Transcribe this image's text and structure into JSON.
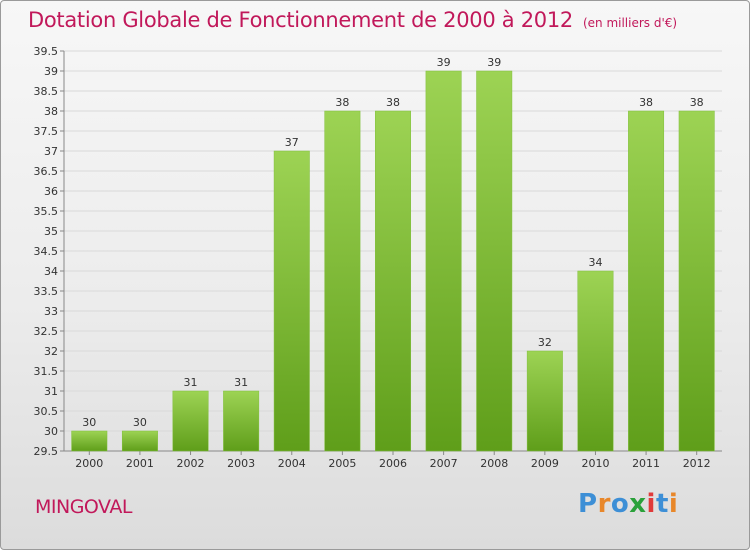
{
  "header": {
    "title": "Dotation Globale de Fonctionnement de 2000 à 2012",
    "unit": "(en milliers d'€)"
  },
  "footer": {
    "commune": "MINGOVAL",
    "logo_text": "Proxiti",
    "logo_colors": [
      "#3d8fd6",
      "#e8872a",
      "#3d8fd6",
      "#2aa13a",
      "#e03a3a",
      "#3d8fd6",
      "#e8872a"
    ]
  },
  "colors": {
    "title": "#c1185a",
    "bar_light": "#9dd354",
    "bar_dark": "#5f9e1a",
    "grid": "#d9d9d9",
    "axis_text": "#333333"
  },
  "chart_data": {
    "type": "bar",
    "title": "Dotation Globale de Fonctionnement de 2000 à 2012",
    "subtitle": "(en milliers d'€)",
    "xlabel": "",
    "ylabel": "",
    "categories": [
      "2000",
      "2001",
      "2002",
      "2003",
      "2004",
      "2005",
      "2006",
      "2007",
      "2008",
      "2009",
      "2010",
      "2011",
      "2012"
    ],
    "values": [
      30,
      30,
      31,
      31,
      37,
      38,
      38,
      39,
      39,
      32,
      34,
      38,
      38
    ],
    "data_labels": [
      "30",
      "30",
      "31",
      "31",
      "37",
      "38",
      "38",
      "39",
      "39",
      "32",
      "34",
      "38",
      "38"
    ],
    "ylim": [
      29.5,
      39.5
    ],
    "yticks": [
      "29.5",
      "30",
      "30.5",
      "31",
      "31.5",
      "32",
      "32.5",
      "33",
      "33.5",
      "34",
      "34.5",
      "35",
      "35.5",
      "36",
      "36.5",
      "37",
      "37.5",
      "38",
      "38.5",
      "39",
      "39.5"
    ],
    "grid": true,
    "legend": "none"
  }
}
